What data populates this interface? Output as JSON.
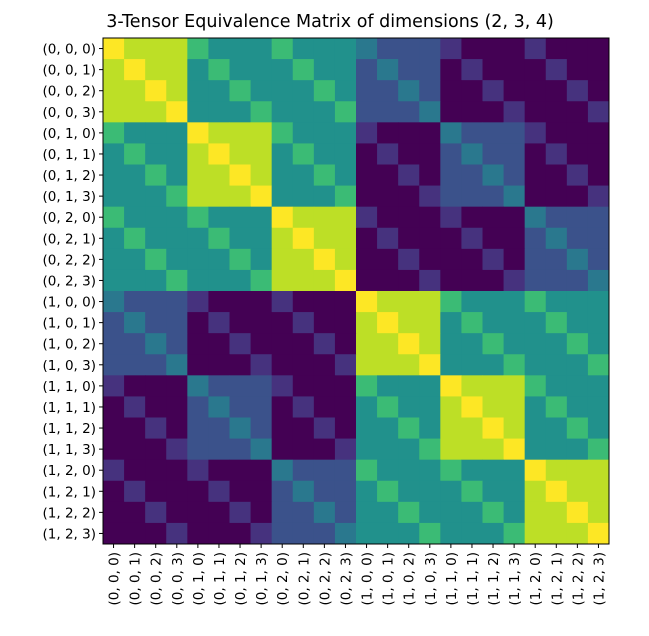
{
  "chart_data": {
    "type": "heatmap",
    "title": "3-Tensor Equivalence Matrix of dimensions (2, 3, 4)",
    "xlabel": "",
    "ylabel": "",
    "dimensions": [
      2,
      3,
      4
    ],
    "colormap": "viridis",
    "value_range": [
      0,
      3
    ],
    "labels": [
      "(0, 0, 0)",
      "(0, 0, 1)",
      "(0, 0, 2)",
      "(0, 0, 3)",
      "(0, 1, 0)",
      "(0, 1, 1)",
      "(0, 1, 2)",
      "(0, 1, 3)",
      "(0, 2, 0)",
      "(0, 2, 1)",
      "(0, 2, 2)",
      "(0, 2, 3)",
      "(1, 0, 0)",
      "(1, 0, 1)",
      "(1, 0, 2)",
      "(1, 0, 3)",
      "(1, 1, 0)",
      "(1, 1, 1)",
      "(1, 1, 2)",
      "(1, 1, 3)",
      "(1, 2, 0)",
      "(1, 2, 1)",
      "(1, 2, 2)",
      "(1, 2, 3)"
    ],
    "value_rule": "value = number of matching index positions between row tuple and column tuple",
    "grid": false,
    "legend": "none"
  }
}
